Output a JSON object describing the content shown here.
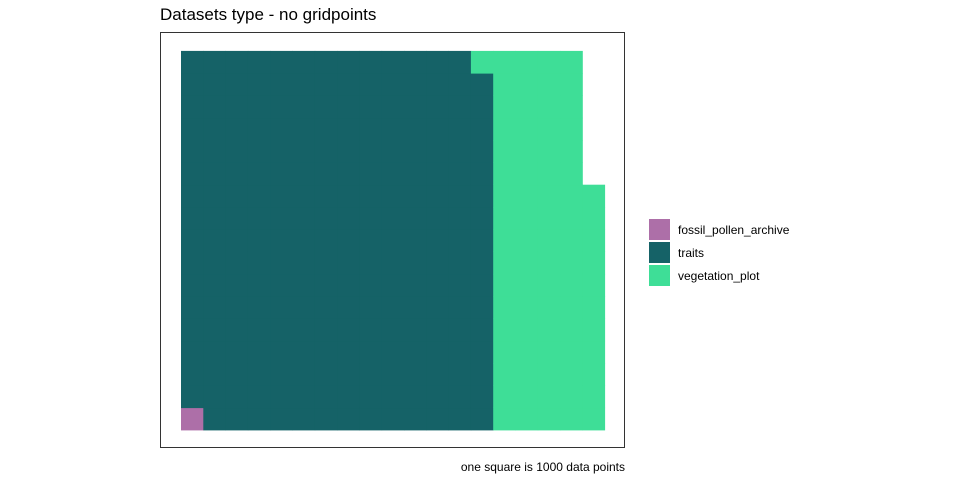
{
  "chart_data": {
    "type": "waffle",
    "title": "Datasets type - no gridpoints",
    "caption": "one square is 1000 data points",
    "grid": {
      "rows": 17,
      "columns": 19,
      "fill_order": "column-major, bottom-to-top"
    },
    "series": [
      {
        "name": "fossil_pollen_archive",
        "squares": 1,
        "color": "#AD6FA8"
      },
      {
        "name": "traits",
        "squares": 236,
        "color": "#156267"
      },
      {
        "name": "vegetation_plot",
        "squares": 80,
        "color": "#3EDE97"
      }
    ],
    "legend_position": "right"
  }
}
